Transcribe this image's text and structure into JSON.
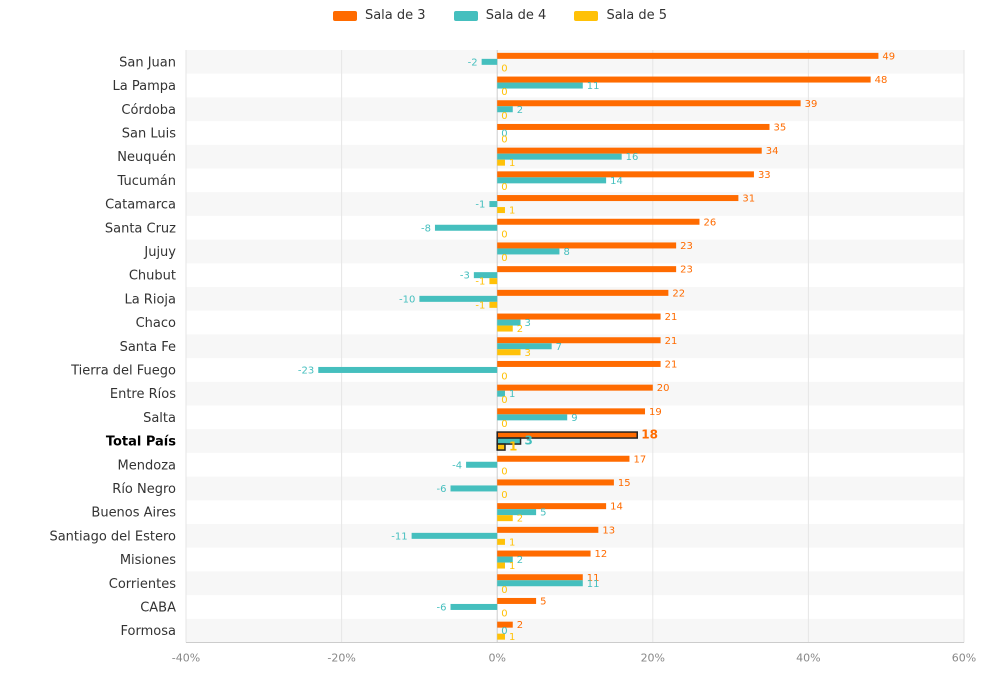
{
  "chart_data": {
    "type": "bar",
    "orientation": "horizontal",
    "title": "",
    "xlabel": "",
    "ylabel": "",
    "legend_position": "top",
    "grid": true,
    "xlim": [
      -40,
      60
    ],
    "x_ticks": [
      -40,
      -20,
      0,
      20,
      40,
      60
    ],
    "x_tick_labels": [
      "-40%",
      "-20%",
      "0%",
      "20%",
      "40%",
      "60%"
    ],
    "highlight_category": "Total País",
    "categories": [
      "San Juan",
      "La Pampa",
      "Córdoba",
      "San Luis",
      "Neuquén",
      "Tucumán",
      "Catamarca",
      "Santa Cruz",
      "Jujuy",
      "Chubut",
      "La Rioja",
      "Chaco",
      "Santa Fe",
      "Tierra del Fuego",
      "Entre Ríos",
      "Salta",
      "Total País",
      "Mendoza",
      "Río Negro",
      "Buenos Aires",
      "Santiago del Estero",
      "Misiones",
      "Corrientes",
      "CABA",
      "Formosa"
    ],
    "series": [
      {
        "name": "Sala de 3",
        "color": "#FF6B00",
        "values": [
          49,
          48,
          39,
          35,
          34,
          33,
          31,
          26,
          23,
          23,
          22,
          21,
          21,
          21,
          20,
          19,
          18,
          17,
          15,
          14,
          13,
          12,
          11,
          5,
          2
        ]
      },
      {
        "name": "Sala de 4",
        "color": "#45BFBE",
        "values": [
          -2,
          11,
          2,
          0,
          16,
          14,
          -1,
          -8,
          8,
          -3,
          -10,
          3,
          7,
          -23,
          1,
          9,
          3,
          -4,
          -6,
          5,
          -11,
          2,
          11,
          -6,
          0
        ]
      },
      {
        "name": "Sala de 5",
        "color": "#FFC107",
        "values": [
          0,
          0,
          0,
          0,
          1,
          0,
          1,
          0,
          0,
          -1,
          -1,
          2,
          3,
          0,
          0,
          0,
          1,
          0,
          0,
          2,
          1,
          1,
          0,
          0,
          1
        ]
      }
    ]
  }
}
